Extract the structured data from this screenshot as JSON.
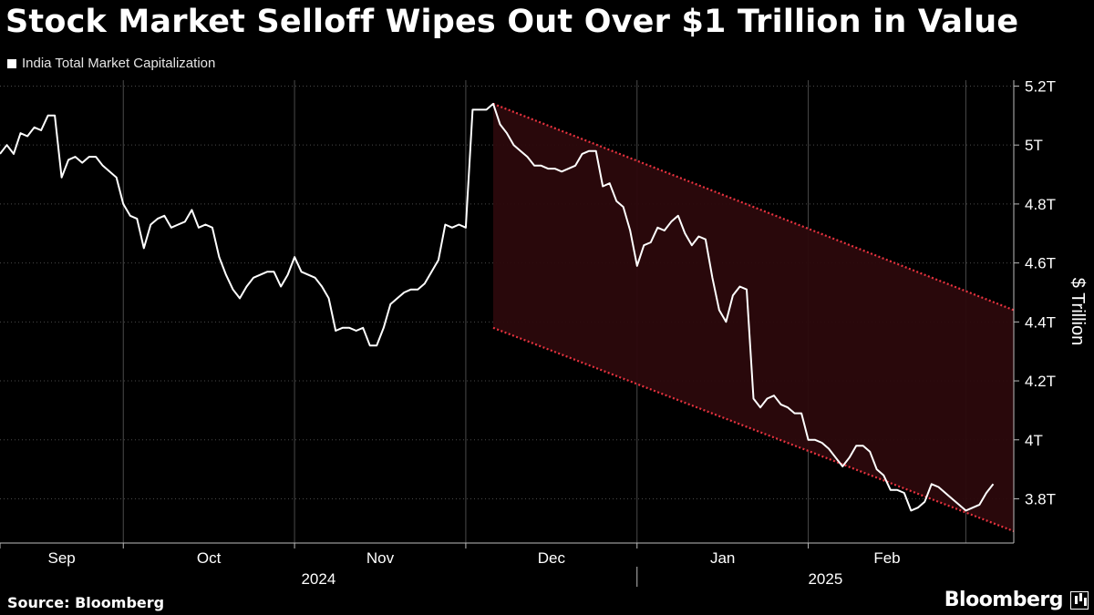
{
  "title": "Stock Market Selloff Wipes Out Over $1 Trillion in Value",
  "legend_label": "India Total Market Capitalization",
  "source": "Source: Bloomberg",
  "brand": "Bloomberg",
  "colors": {
    "background": "#000000",
    "line": "#ffffff",
    "channel_fill": "#2b080c",
    "channel_border": "#e8333f",
    "grid": "#4a4a4a"
  },
  "chart_data": {
    "type": "line",
    "ylabel": "$ Trillion",
    "ylim": [
      3.65,
      5.22
    ],
    "yticks": [
      3.8,
      4.0,
      4.2,
      4.4,
      4.6,
      4.8,
      5.0,
      5.2
    ],
    "ytick_labels": [
      "3.8T",
      "4T",
      "4.2T",
      "4.4T",
      "4.6T",
      "4.8T",
      "5T",
      "5.2T"
    ],
    "xlim": [
      0,
      148
    ],
    "month_ticks": [
      {
        "label": "Sep",
        "start": 0,
        "end": 18
      },
      {
        "label": "Oct",
        "start": 18,
        "end": 43
      },
      {
        "label": "Nov",
        "start": 43,
        "end": 68
      },
      {
        "label": "Dec",
        "start": 68,
        "end": 93
      },
      {
        "label": "Jan",
        "start": 93,
        "end": 118
      },
      {
        "label": "Feb",
        "start": 118,
        "end": 141
      }
    ],
    "year_labels": [
      {
        "label": "2024",
        "start": 0,
        "end": 93
      },
      {
        "label": "2025",
        "start": 93,
        "end": 148
      }
    ],
    "series": [
      {
        "name": "India Total Market Capitalization",
        "x": [
          0,
          1,
          2,
          3,
          4,
          5,
          6,
          7,
          8,
          9,
          10,
          11,
          12,
          13,
          14,
          15,
          16,
          17,
          18,
          19,
          20,
          21,
          22,
          23,
          24,
          25,
          26,
          27,
          28,
          29,
          30,
          31,
          32,
          33,
          34,
          35,
          36,
          37,
          38,
          39,
          40,
          41,
          42,
          43,
          44,
          45,
          46,
          47,
          48,
          49,
          50,
          51,
          52,
          53,
          54,
          55,
          56,
          57,
          58,
          59,
          60,
          61,
          62,
          63,
          64,
          65,
          66,
          67,
          68,
          69,
          70,
          71,
          72,
          73,
          74,
          75,
          76,
          77,
          78,
          79,
          80,
          81,
          82,
          83,
          84,
          85,
          86,
          87,
          88,
          89,
          90,
          91,
          92,
          93,
          94,
          95,
          96,
          97,
          98,
          99,
          100,
          101,
          102,
          103,
          104,
          105,
          106,
          107,
          108,
          109,
          110,
          111,
          112,
          113,
          114,
          115,
          116,
          117,
          118,
          119,
          120,
          121,
          122,
          123,
          124,
          125,
          126,
          127,
          128,
          129,
          130,
          131,
          132,
          133,
          134,
          135,
          136,
          137,
          138,
          139,
          140,
          141,
          142,
          143,
          144,
          145
        ],
        "y": [
          4.97,
          5.0,
          4.97,
          5.04,
          5.03,
          5.06,
          5.05,
          5.1,
          5.1,
          4.89,
          4.95,
          4.96,
          4.94,
          4.96,
          4.96,
          4.93,
          4.91,
          4.89,
          4.8,
          4.76,
          4.75,
          4.65,
          4.73,
          4.75,
          4.76,
          4.72,
          4.73,
          4.74,
          4.78,
          4.72,
          4.73,
          4.72,
          4.62,
          4.56,
          4.51,
          4.48,
          4.52,
          4.55,
          4.56,
          4.57,
          4.57,
          4.52,
          4.56,
          4.62,
          4.57,
          4.56,
          4.55,
          4.52,
          4.48,
          4.37,
          4.38,
          4.38,
          4.37,
          4.38,
          4.32,
          4.32,
          4.38,
          4.46,
          4.48,
          4.5,
          4.51,
          4.51,
          4.53,
          4.57,
          4.61,
          4.73,
          4.72,
          4.73,
          4.72,
          5.12,
          5.12,
          5.12,
          5.14,
          5.07,
          5.04,
          5.0,
          4.98,
          4.96,
          4.93,
          4.93,
          4.92,
          4.92,
          4.91,
          4.92,
          4.93,
          4.97,
          4.98,
          4.98,
          4.86,
          4.87,
          4.81,
          4.79,
          4.71,
          4.59,
          4.66,
          4.67,
          4.72,
          4.71,
          4.74,
          4.76,
          4.7,
          4.66,
          4.69,
          4.68,
          4.55,
          4.44,
          4.4,
          4.49,
          4.52,
          4.51,
          4.14,
          4.11,
          4.14,
          4.15,
          4.12,
          4.11,
          4.09,
          4.09,
          4.0,
          4.0,
          3.99,
          3.97,
          3.94,
          3.91,
          3.94,
          3.98,
          3.98,
          3.96,
          3.9,
          3.88,
          3.83,
          3.83,
          3.82,
          3.76,
          3.77,
          3.79,
          3.85,
          3.84,
          3.82,
          3.8,
          3.78,
          3.76,
          3.77,
          3.78,
          3.82,
          3.85
        ]
      }
    ],
    "channel": {
      "upper": {
        "x": [
          72,
          148
        ],
        "y": [
          5.14,
          4.44
        ]
      },
      "lower": {
        "x": [
          72,
          148
        ],
        "y": [
          4.38,
          3.69
        ]
      }
    }
  }
}
